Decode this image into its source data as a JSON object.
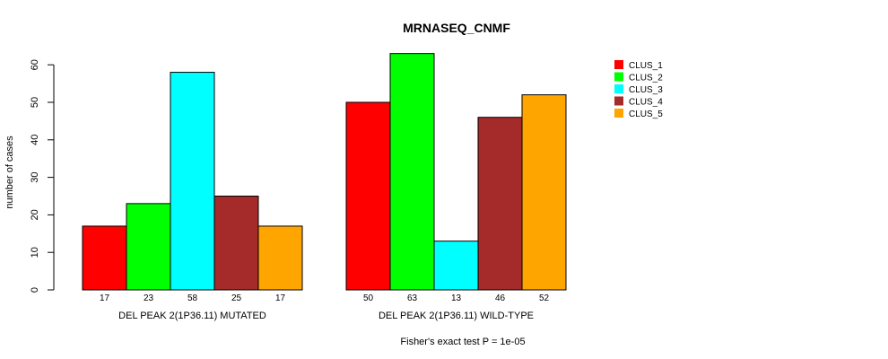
{
  "chart_data": {
    "type": "bar",
    "title": "MRNASEQ_CNMF",
    "ylabel": "number of cases",
    "xlabel": "",
    "ylim": [
      0,
      63
    ],
    "yticks": [
      0,
      10,
      20,
      30,
      40,
      50,
      60
    ],
    "grid": false,
    "legend_position": "top-right",
    "groups": [
      "DEL PEAK  2(1P36.11) MUTATED",
      "DEL PEAK  2(1P36.11) WILD-TYPE"
    ],
    "series": [
      {
        "name": "CLUS_1",
        "color": "#ff0000",
        "values": [
          17,
          50
        ]
      },
      {
        "name": "CLUS_2",
        "color": "#00ff00",
        "values": [
          23,
          63
        ]
      },
      {
        "name": "CLUS_3",
        "color": "#00ffff",
        "values": [
          58,
          13
        ]
      },
      {
        "name": "CLUS_4",
        "color": "#a52a2a",
        "values": [
          25,
          46
        ]
      },
      {
        "name": "CLUS_5",
        "color": "#ffa500",
        "values": [
          17,
          52
        ]
      }
    ],
    "footnote": "Fisher's exact test P = 1e-05"
  }
}
